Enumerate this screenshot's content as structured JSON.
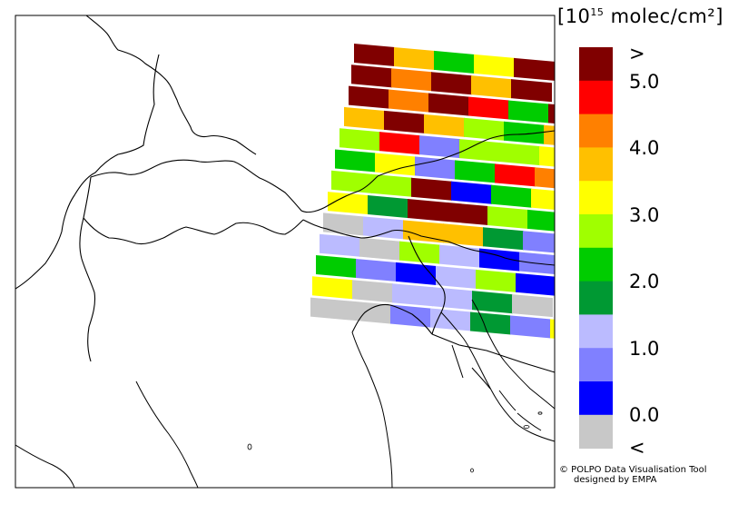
{
  "legend": {
    "title_prefix": "[10",
    "title_sup": "15",
    "title_suffix": " molec/cm²]",
    "bins": [
      {
        "label": ">",
        "color": "#800000"
      },
      {
        "label": "5.0",
        "color": "#ff0000"
      },
      {
        "label": "",
        "color": "#ff8000"
      },
      {
        "label": "4.0",
        "color": "#ffc000"
      },
      {
        "label": "",
        "color": "#ffff00"
      },
      {
        "label": "3.0",
        "color": "#a0ff00"
      },
      {
        "label": "",
        "color": "#00cc00"
      },
      {
        "label": "2.0",
        "color": "#009933"
      },
      {
        "label": "",
        "color": "#bbbbff"
      },
      {
        "label": "1.0",
        "color": "#8080ff"
      },
      {
        "label": "",
        "color": "#0000ff"
      },
      {
        "label": "0.0",
        "color": "#c8c8c8"
      },
      {
        "label": "<",
        "color": ""
      }
    ]
  },
  "credit": {
    "line1": "© POLPO Data Visualisation Tool",
    "line2": "designed by EMPA"
  },
  "map": {
    "scanlines": [
      [
        "#800000",
        "#ffc000",
        "#00cc00",
        "#ffff00",
        "#800000"
      ],
      [
        "#800000",
        "#ff8000",
        "#800000",
        "#ffc000",
        "#800000"
      ],
      [
        "#800000",
        "#ff8000",
        "#800000",
        "#ff0000",
        "#00cc00",
        "#800000"
      ],
      [
        "#ffc000",
        "#800000",
        "#ffc000",
        "#a0ff00",
        "#00cc00",
        "#ffc000"
      ],
      [
        "#a0ff00",
        "#ff0000",
        "#8080ff",
        "#a0ff00",
        "#a0ff00",
        "#ffff00"
      ],
      [
        "#00cc00",
        "#ffff00",
        "#8080ff",
        "#00cc00",
        "#ff0000",
        "#ff8000"
      ],
      [
        "#a0ff00",
        "#a0ff00",
        "#800000",
        "#0000ff",
        "#00cc00",
        "#ffff00"
      ],
      [
        "#ffff00",
        "#009933",
        "#800000",
        "#800000",
        "#a0ff00",
        "#00cc00"
      ],
      [
        "#c8c8c8",
        "#bbbbff",
        "#ffc000",
        "#ffc000",
        "#009933",
        "#8080ff"
      ],
      [
        "#bbbbff",
        "#c8c8c8",
        "#a0ff00",
        "#bbbbff",
        "#0000ff",
        "#8080ff"
      ],
      [
        "#00cc00",
        "#8080ff",
        "#0000ff",
        "#bbbbff",
        "#a0ff00",
        "#0000ff"
      ],
      [
        "#ffff00",
        "#c8c8c8",
        "#bbbbff",
        "#bbbbff",
        "#009933",
        "#c8c8c8"
      ],
      [
        "#c8c8c8",
        "#c8c8c8",
        "#8080ff",
        "#bbbbff",
        "#009933",
        "#8080ff",
        "#ffff00"
      ]
    ]
  }
}
